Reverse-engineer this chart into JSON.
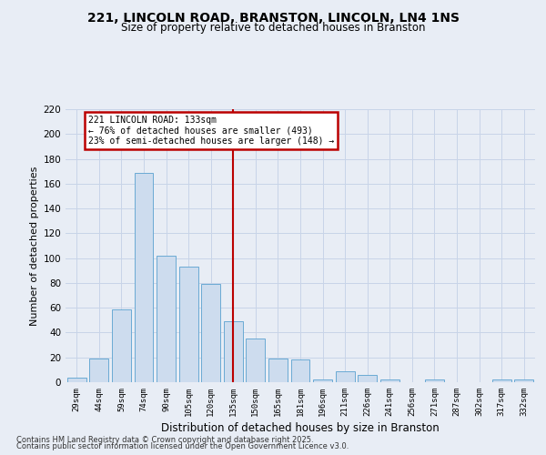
{
  "title1": "221, LINCOLN ROAD, BRANSTON, LINCOLN, LN4 1NS",
  "title2": "Size of property relative to detached houses in Branston",
  "xlabel": "Distribution of detached houses by size in Branston",
  "ylabel": "Number of detached properties",
  "bar_labels": [
    "29sqm",
    "44sqm",
    "59sqm",
    "74sqm",
    "90sqm",
    "105sqm",
    "120sqm",
    "135sqm",
    "150sqm",
    "165sqm",
    "181sqm",
    "196sqm",
    "211sqm",
    "226sqm",
    "241sqm",
    "256sqm",
    "271sqm",
    "287sqm",
    "302sqm",
    "317sqm",
    "332sqm"
  ],
  "bar_values": [
    4,
    19,
    59,
    169,
    102,
    93,
    79,
    49,
    35,
    19,
    18,
    2,
    9,
    6,
    2,
    0,
    2,
    0,
    0,
    2,
    2
  ],
  "bar_color": "#cddcee",
  "bar_edge_color": "#6aaad4",
  "vline_index": 7,
  "annotation_title": "221 LINCOLN ROAD: 133sqm",
  "annotation_line1": "← 76% of detached houses are smaller (493)",
  "annotation_line2": "23% of semi-detached houses are larger (148) →",
  "annotation_box_color": "#ffffff",
  "annotation_box_edge": "#bb0000",
  "vline_color": "#bb0000",
  "ylim": [
    0,
    220
  ],
  "yticks": [
    0,
    20,
    40,
    60,
    80,
    100,
    120,
    140,
    160,
    180,
    200,
    220
  ],
  "grid_color": "#c8d4e8",
  "bg_color": "#e8edf5",
  "footer1": "Contains HM Land Registry data © Crown copyright and database right 2025.",
  "footer2": "Contains public sector information licensed under the Open Government Licence v3.0."
}
